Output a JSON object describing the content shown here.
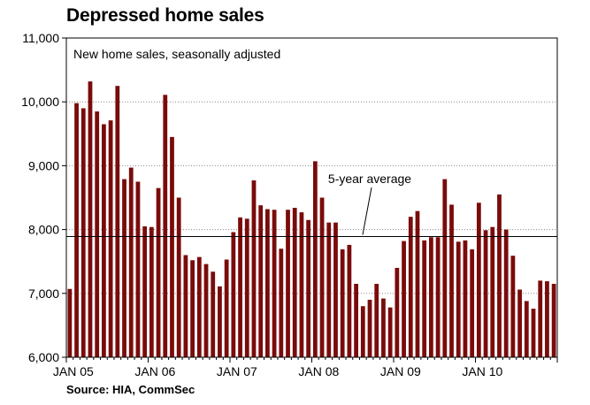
{
  "chart_data": {
    "type": "bar",
    "title": "Depressed home sales",
    "subtitle": "New home sales, seasonally adjusted",
    "source": "Source: HIA, CommSec",
    "ylim": [
      6000,
      11000
    ],
    "yticks": [
      6000,
      7000,
      8000,
      9000,
      10000,
      11000
    ],
    "ytick_labels": [
      "6,000",
      "7,000",
      "8,000",
      "9,000",
      "10,000",
      "11,000"
    ],
    "xtick_labels": [
      {
        "label": "JAN 05",
        "index": 0
      },
      {
        "label": "JAN 06",
        "index": 12
      },
      {
        "label": "JAN 07",
        "index": 24
      },
      {
        "label": "JAN 08",
        "index": 36
      },
      {
        "label": "JAN 09",
        "index": 48
      },
      {
        "label": "JAN 10",
        "index": 60
      }
    ],
    "grid": true,
    "bar_color": "#7a0b0b",
    "reference_line": {
      "label": "5-year average",
      "value": 7890
    },
    "values": [
      7070,
      9980,
      9900,
      10320,
      9850,
      9650,
      9710,
      10250,
      8790,
      8970,
      8750,
      8050,
      8040,
      8650,
      10110,
      9450,
      8500,
      7600,
      7520,
      7570,
      7460,
      7340,
      7110,
      7530,
      7960,
      8190,
      8170,
      8770,
      8380,
      8320,
      8310,
      7700,
      8310,
      8340,
      8270,
      8150,
      9070,
      8500,
      8110,
      8110,
      7690,
      7760,
      7150,
      6800,
      6900,
      7150,
      6920,
      6780,
      7400,
      7820,
      8200,
      8290,
      7830,
      7880,
      7880,
      8790,
      8390,
      7810,
      7830,
      7690,
      8420,
      7990,
      8040,
      8550,
      8000,
      7590,
      7060,
      6880,
      6760,
      7200,
      7190,
      7150
    ]
  }
}
